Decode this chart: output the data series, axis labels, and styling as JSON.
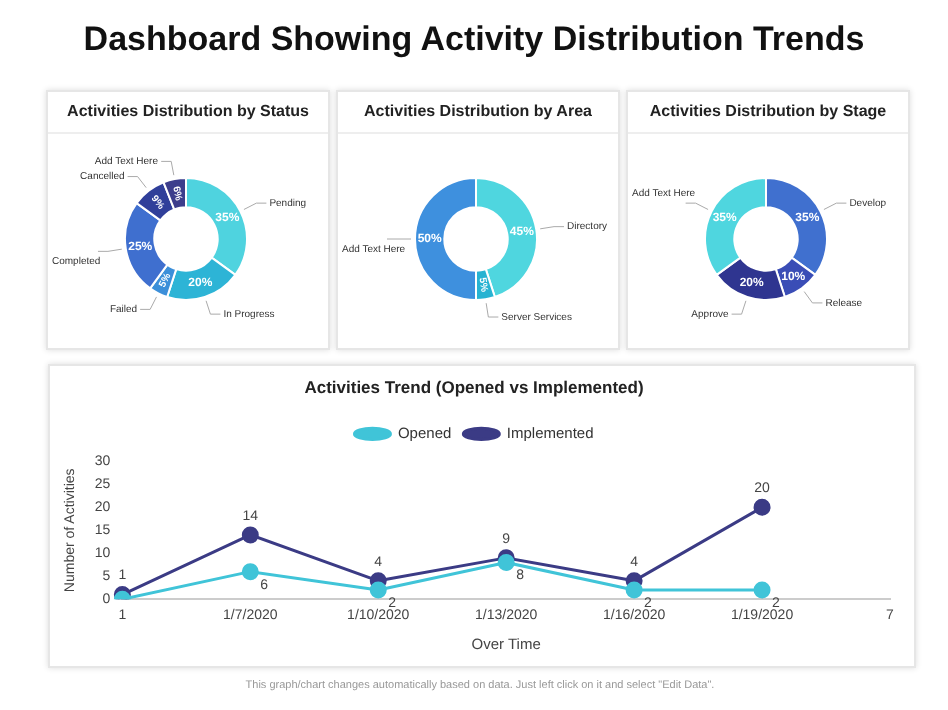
{
  "chart_data": [
    {
      "type": "other",
      "title": "Dashboard Showing Activity Distribution Trends"
    },
    {
      "type": "donut",
      "title": "Activities Distribution by Status",
      "categories": [
        "Pending",
        "In Progress",
        "Failed",
        "Completed",
        "Cancelled",
        "Add Text Here"
      ],
      "values": [
        35,
        20,
        5,
        25,
        9,
        6
      ],
      "value_labels": [
        "35%",
        "20%",
        "5%",
        "25%",
        "9%",
        "6%"
      ],
      "colors": [
        "#4fd3df",
        "#2db4d6",
        "#3c8fd9",
        "#3f6fcf",
        "#303f9a",
        "#3c3d8c"
      ]
    },
    {
      "type": "donut",
      "title": "Activities Distribution by Area",
      "categories": [
        "Directory",
        "Server Services",
        "Add Text Here"
      ],
      "values": [
        45,
        5,
        50
      ],
      "value_labels": [
        "45%",
        "5%",
        "50%"
      ],
      "colors": [
        "#4fd6df",
        "#27b3d2",
        "#3e90de"
      ]
    },
    {
      "type": "donut",
      "title": "Activities Distribution by Stage",
      "categories": [
        "Develop",
        "Release",
        "Approve",
        "Add Text Here"
      ],
      "values": [
        35,
        10,
        20,
        35
      ],
      "value_labels": [
        "35%",
        "10%",
        "20%",
        "35%"
      ],
      "colors": [
        "#4070cf",
        "#3a4db6",
        "#2f3590",
        "#4fd6df"
      ]
    },
    {
      "type": "line",
      "title": "Activities Trend (Opened vs Implemented)",
      "xlabel": "Over Time",
      "ylabel": "Number of Activities",
      "categories": [
        "1",
        "1/7/2020",
        "1/10/2020",
        "1/13/2020",
        "1/16/2020",
        "1/19/2020",
        "7"
      ],
      "ylim": [
        0,
        30
      ],
      "yticks": [
        0,
        5,
        10,
        15,
        20,
        25,
        30
      ],
      "legend": "top",
      "marker": "circle",
      "annotations": [
        "This graph/chart changes automatically based on data. Just left click on it and select \"Edit Data\"."
      ],
      "series": [
        {
          "name": "Opened",
          "color": "#40c4d8",
          "values": [
            0,
            6,
            2,
            8,
            2,
            2,
            null
          ],
          "value_labels": [
            null,
            "6",
            "2",
            "8",
            "2",
            "2",
            null
          ]
        },
        {
          "name": "Implemented",
          "color": "#3b3b85",
          "values": [
            1,
            14,
            4,
            9,
            4,
            20,
            null
          ],
          "value_labels": [
            "1",
            "14",
            "4",
            "9",
            "4",
            "20",
            null
          ]
        }
      ]
    }
  ]
}
